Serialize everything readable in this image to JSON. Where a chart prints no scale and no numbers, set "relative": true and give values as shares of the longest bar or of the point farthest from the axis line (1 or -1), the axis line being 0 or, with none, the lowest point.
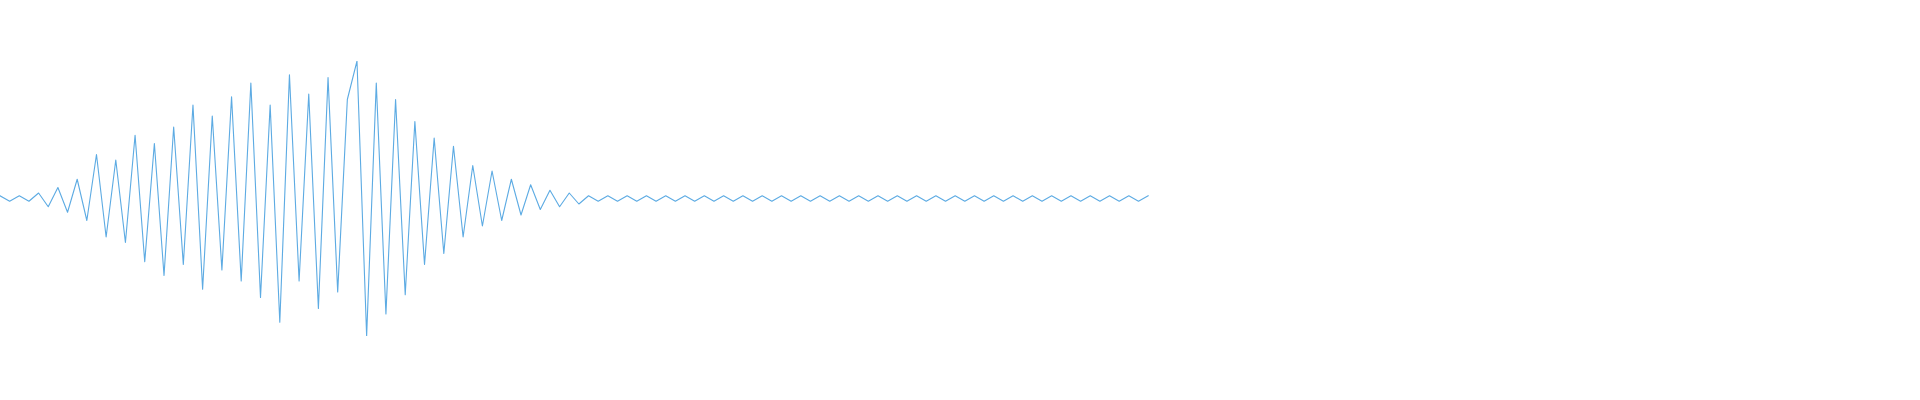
{
  "chart_data": {
    "type": "line",
    "relative": true,
    "categories": [
      null,
      null,
      null,
      null,
      null,
      null,
      null,
      null,
      null,
      null,
      null,
      null,
      null,
      null,
      null,
      null,
      null,
      null,
      null,
      null,
      null,
      null,
      null,
      null,
      null,
      null,
      null,
      null,
      null,
      null,
      null,
      null,
      null,
      null,
      null,
      null,
      null,
      null,
      null,
      null,
      null,
      null,
      null,
      null,
      null,
      null,
      null,
      null,
      null,
      null,
      null,
      null,
      null,
      null,
      null,
      null,
      null,
      null,
      null,
      null,
      null,
      null,
      null,
      null,
      null,
      null,
      null,
      null,
      null,
      null,
      null,
      null,
      null,
      null,
      null,
      null,
      null,
      null,
      null,
      null,
      null,
      null,
      null,
      null,
      null,
      null,
      null,
      null,
      null,
      null,
      null,
      null,
      null,
      null,
      null,
      null,
      null,
      null,
      null,
      null,
      null,
      null,
      null,
      null,
      null,
      null,
      null,
      null,
      null,
      null,
      null,
      null,
      null,
      null,
      null,
      null,
      null,
      null,
      null,
      null,
      null,
      null,
      null,
      null,
      null,
      null,
      null,
      null,
      null,
      null,
      null,
      null,
      null,
      null,
      null,
      null,
      null,
      null,
      null,
      null,
      null,
      null,
      null,
      null,
      null,
      null,
      null,
      null,
      null,
      null,
      null,
      null,
      null,
      null,
      null,
      null,
      null,
      null,
      null,
      null,
      null,
      null,
      null,
      null,
      null,
      null,
      null,
      null,
      null,
      null,
      null,
      null,
      null,
      null,
      null,
      null,
      null,
      null,
      null,
      null,
      null,
      null,
      null,
      null,
      null,
      null,
      null,
      null,
      null,
      null,
      null,
      null,
      null,
      null,
      null,
      null,
      null,
      null,
      null,
      null
    ],
    "series": [
      {
        "color": "#5dabe3",
        "values": [
          0.51,
          0.49,
          0.51,
          0.49,
          0.52,
          0.47,
          0.54,
          0.45,
          0.57,
          0.42,
          0.66,
          0.36,
          0.64,
          0.34,
          0.73,
          0.27,
          0.7,
          0.22,
          0.76,
          0.26,
          0.84,
          0.17,
          0.8,
          0.24,
          0.87,
          0.2,
          0.92,
          0.14,
          0.84,
          0.05,
          0.95,
          0.2,
          0.88,
          0.1,
          0.94,
          0.16,
          0.86,
          1.0,
          0,
          0.92,
          0.08,
          0.86,
          0.15,
          0.78,
          0.26,
          0.72,
          0.3,
          0.69,
          0.36,
          0.62,
          0.4,
          0.6,
          0.42,
          0.57,
          0.44,
          0.55,
          0.46,
          0.53,
          0.47,
          0.52,
          0.48,
          0.51,
          0.49,
          0.51,
          0.49,
          0.51,
          0.49,
          0.51,
          0.49,
          0.51,
          0.49,
          0.51,
          0.49,
          0.51,
          0.49,
          0.51,
          0.49,
          0.51,
          0.49,
          0.51,
          0.49,
          0.51,
          0.49,
          0.51,
          0.49,
          0.51,
          0.49,
          0.51,
          0.49,
          0.51,
          0.49,
          0.51,
          0.49,
          0.51,
          0.49,
          0.51,
          0.49,
          0.51,
          0.49,
          0.51,
          0.49,
          0.51,
          0.49,
          0.51,
          0.49,
          0.51,
          0.49,
          0.51,
          0.49,
          0.51,
          0.49,
          0.51,
          0.49,
          0.51,
          0.49,
          0.51,
          0.49,
          0.51,
          0.49,
          0.51,
          null,
          null,
          null,
          null,
          null,
          null,
          null,
          null,
          null,
          null,
          null,
          null,
          null,
          null,
          null,
          null,
          null,
          null,
          null,
          null,
          null,
          null,
          null,
          null,
          null,
          null,
          null,
          null,
          null,
          null,
          null,
          null,
          null,
          null,
          null,
          null,
          null,
          null,
          null,
          null,
          null,
          null,
          null,
          null,
          null,
          null,
          null,
          null,
          null,
          null,
          null,
          null,
          null,
          null,
          null,
          null,
          null,
          null,
          null,
          null,
          null,
          null,
          null,
          null,
          null,
          null,
          null,
          null,
          null,
          null,
          null,
          null,
          null,
          null,
          null,
          null,
          null,
          null,
          null,
          null
        ]
      }
    ]
  }
}
